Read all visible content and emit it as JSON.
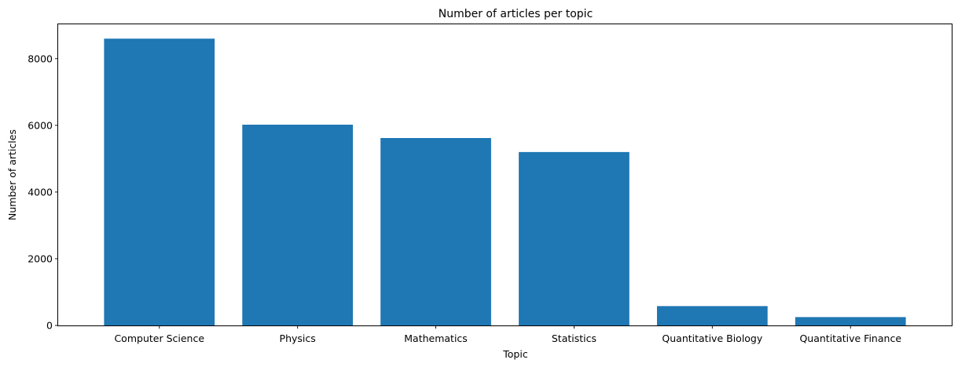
{
  "chart_data": {
    "type": "bar",
    "title": "Number of articles per topic",
    "xlabel": "Topic",
    "ylabel": "Number of articles",
    "categories": [
      "Computer Science",
      "Physics",
      "Mathematics",
      "Statistics",
      "Quantitative Biology",
      "Quantitative Finance"
    ],
    "values": [
      8600,
      6020,
      5620,
      5200,
      580,
      250
    ],
    "ylim": [
      0,
      9030
    ],
    "yticks": [
      0,
      2000,
      4000,
      6000,
      8000
    ],
    "grid": false,
    "legend": "none",
    "bar_color": "#1f77b4"
  }
}
